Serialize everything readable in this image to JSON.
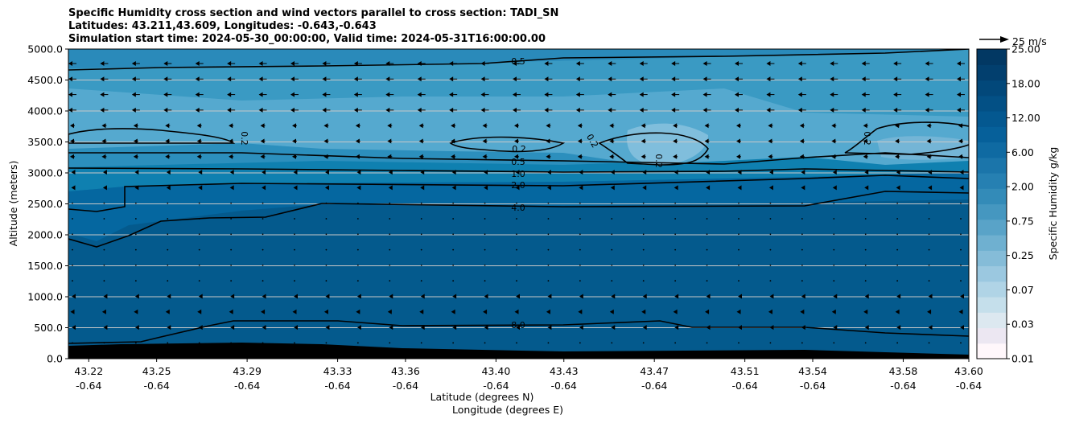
{
  "chart_data": {
    "type": "contour",
    "title_lines": [
      "Specific Humidity cross section and wind vectors parallel to cross section: TADI_SN",
      "Latitudes: 43.211,43.609, Longitudes: -0.643,-0.643",
      "Simulation start time: 2024-05-30_00:00:00, Valid time: 2024-05-31T16:00:00.00"
    ],
    "xlabel_lines": [
      "Latitude (degrees N)",
      "Longitude (degrees E)"
    ],
    "ylabel": "Altitude (meters)",
    "ylim": [
      0,
      5000
    ],
    "xlim": [
      43.211,
      43.609
    ],
    "y_ticks": [
      "0.0",
      "500.0",
      "1000.0",
      "1500.0",
      "2000.0",
      "2500.0",
      "3000.0",
      "3500.0",
      "4000.0",
      "4500.0",
      "5000.0"
    ],
    "x_ticks": [
      {
        "lat": "43.22",
        "lon": "-0.64"
      },
      {
        "lat": "43.25",
        "lon": "-0.64"
      },
      {
        "lat": "43.29",
        "lon": "-0.64"
      },
      {
        "lat": "43.33",
        "lon": "-0.64"
      },
      {
        "lat": "43.36",
        "lon": "-0.64"
      },
      {
        "lat": "43.40",
        "lon": "-0.64"
      },
      {
        "lat": "43.43",
        "lon": "-0.64"
      },
      {
        "lat": "43.47",
        "lon": "-0.64"
      },
      {
        "lat": "43.51",
        "lon": "-0.64"
      },
      {
        "lat": "43.54",
        "lon": "-0.64"
      },
      {
        "lat": "43.58",
        "lon": "-0.64"
      },
      {
        "lat": "43.60",
        "lon": "-0.64"
      }
    ],
    "colorbar": {
      "label": "Specific Humidity g/kg",
      "ticks": [
        "0.01",
        "0.03",
        "0.07",
        "0.25",
        "0.75",
        "2.00",
        "6.00",
        "12.00",
        "18.00",
        "25.00"
      ],
      "colormap": "PuBu"
    },
    "contour_labels": [
      "0.5",
      "0.2",
      "0.2",
      "0.2",
      "0.2",
      "0.2",
      "0.5",
      "1.0",
      "2.0",
      "4.0",
      "8.0"
    ],
    "quiver_key": "25 m/s",
    "grid": "horizontal",
    "terrain_color": "#000000"
  }
}
